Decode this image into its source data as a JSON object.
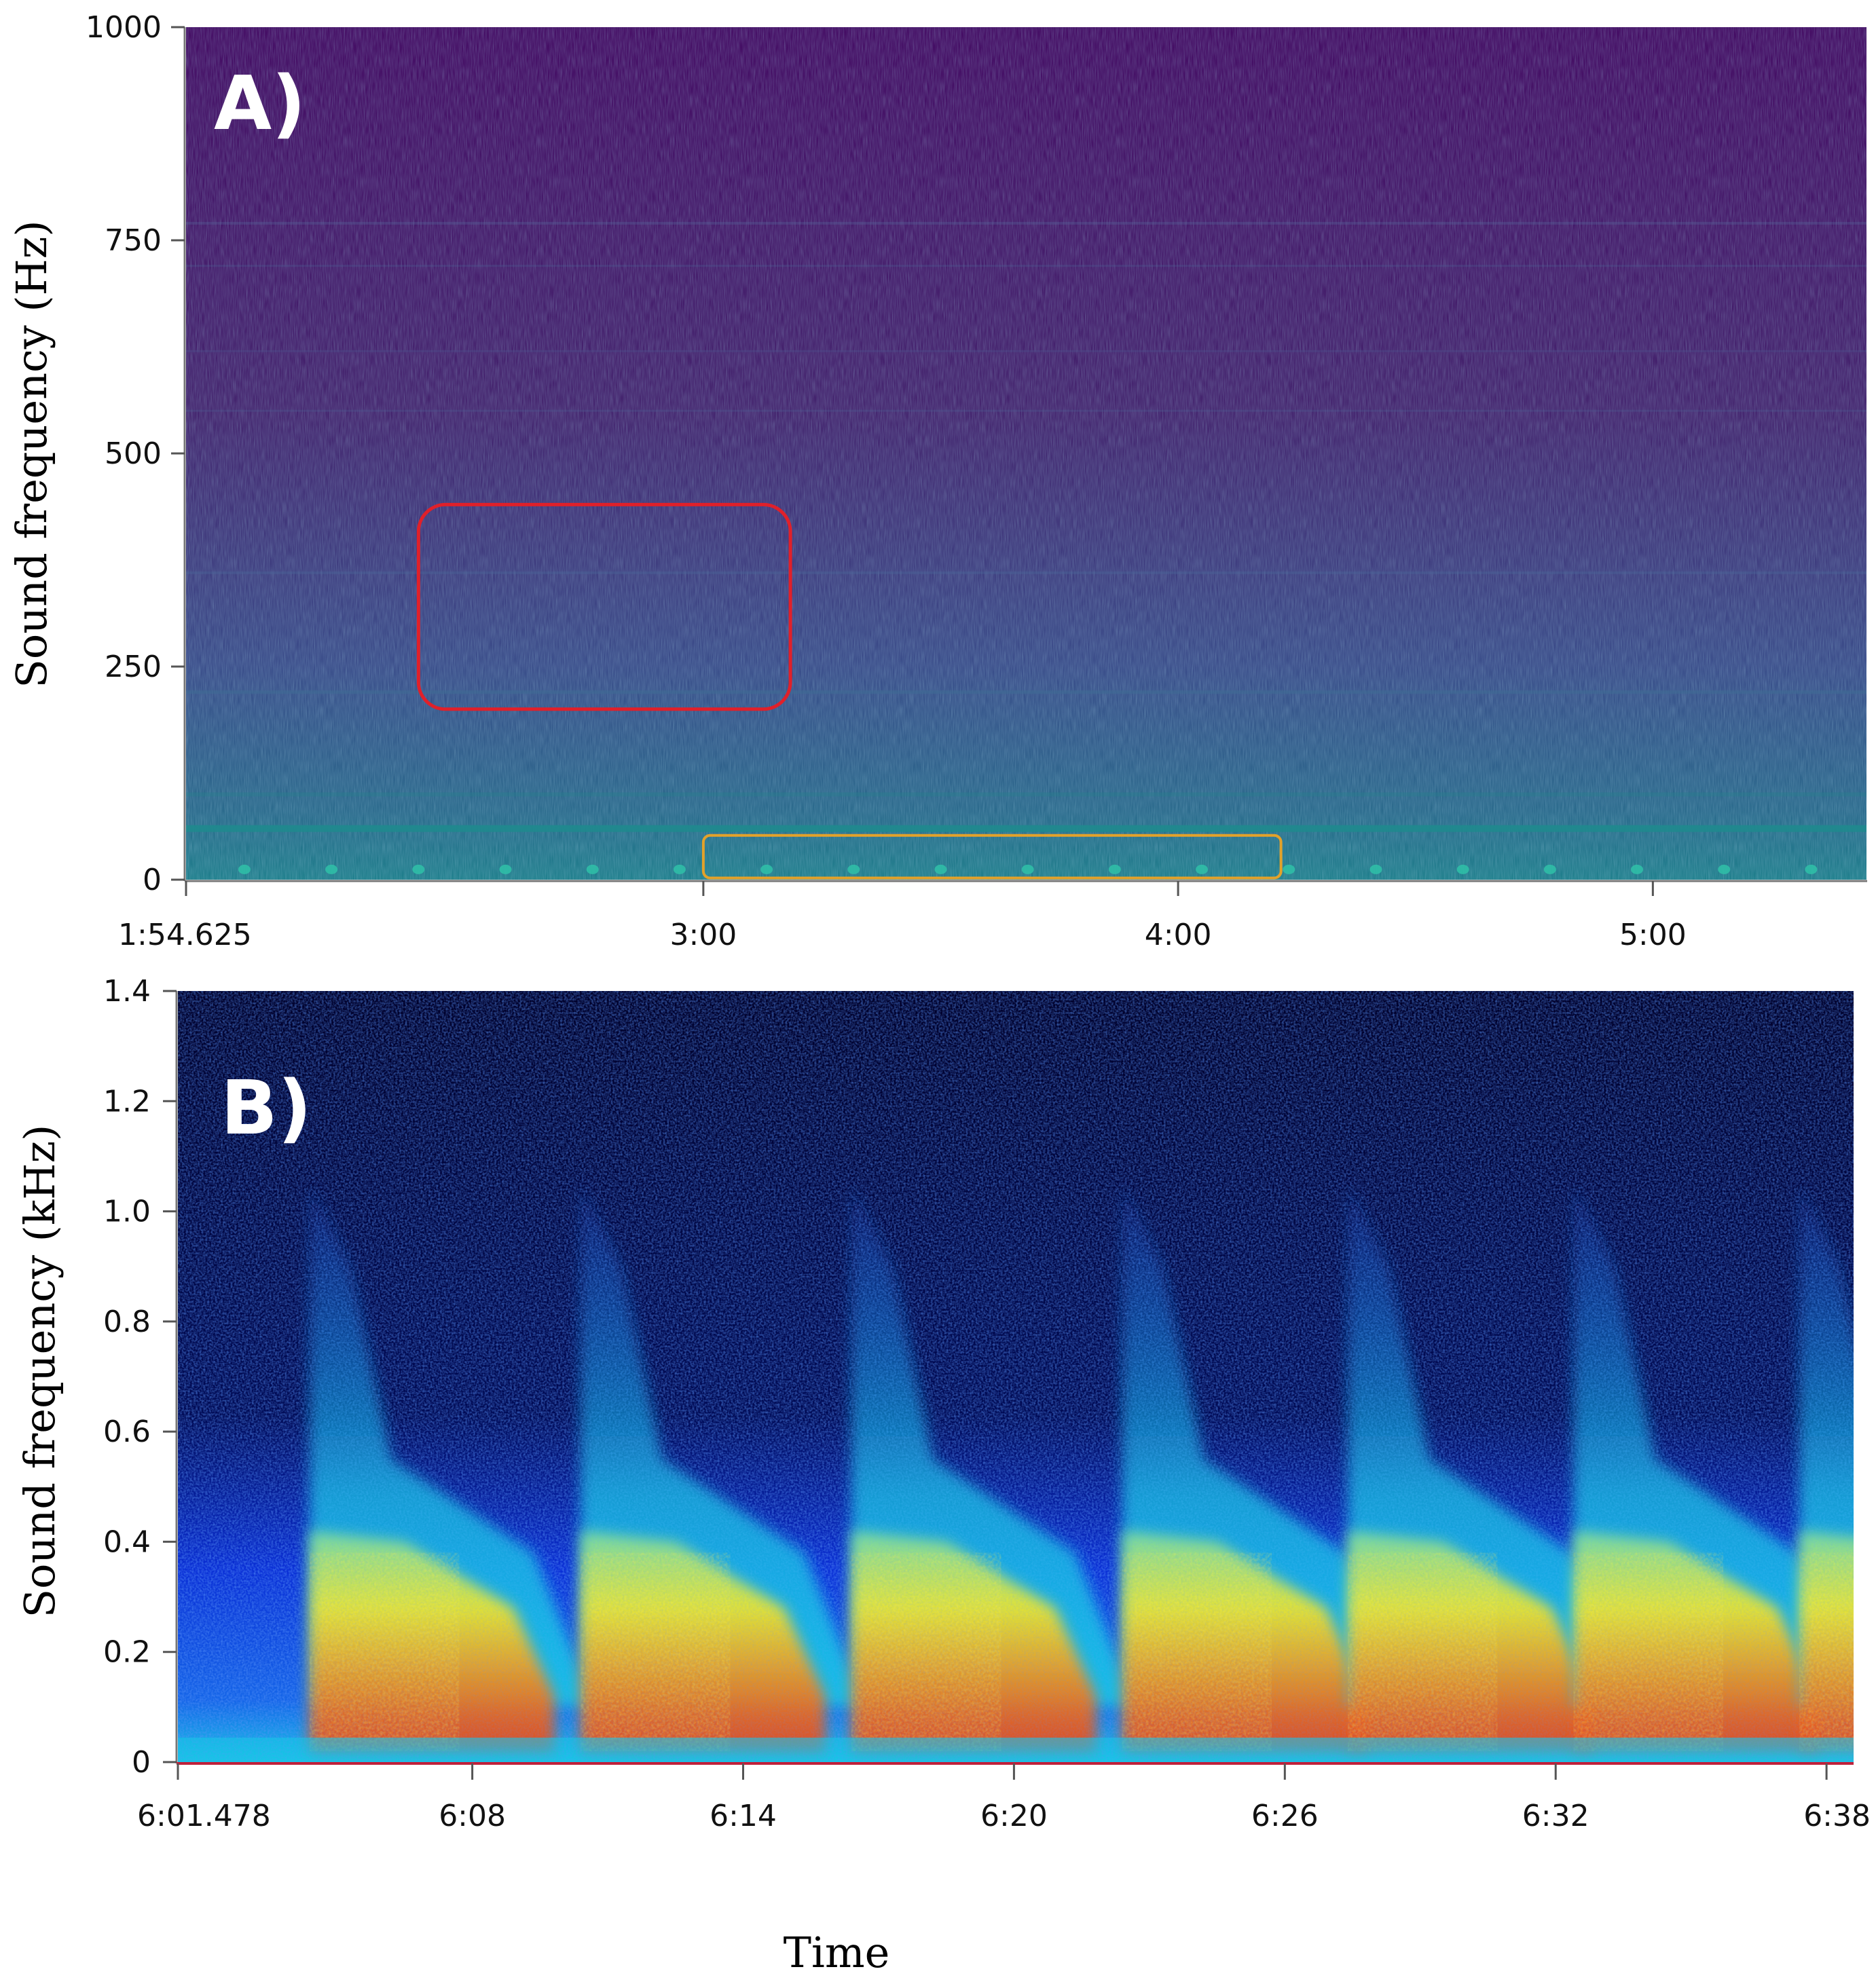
{
  "chart_data": [
    {
      "type": "heatmap",
      "panel_label": "A)",
      "ylabel": "Sound frequency (Hz)",
      "yticks": [
        "0",
        "250",
        "500",
        "750",
        "1000"
      ],
      "ylim": [
        0,
        1000
      ],
      "xticks": [
        "1:54.625",
        "3:00",
        "4:00",
        "5:00"
      ],
      "xlim_seconds": [
        114.625,
        327
      ],
      "colormap": [
        "#440b63",
        "#3a4d8a",
        "#1f7f8c"
      ],
      "annotations": [
        {
          "shape": "rounded-rect",
          "color": "#e0202a",
          "x_seconds": [
            144,
            191
          ],
          "y_hz": [
            200,
            440
          ]
        },
        {
          "shape": "rounded-rect",
          "color": "#e3a22a",
          "x_seconds": [
            180,
            253
          ],
          "y_hz": [
            2,
            52
          ]
        }
      ]
    },
    {
      "type": "heatmap",
      "panel_label": "B)",
      "ylabel": "Sound frequency (kHz)",
      "yticks": [
        "0",
        "0.2",
        "0.4",
        "0.6",
        "0.8",
        "1.0",
        "1.2",
        "1.4"
      ],
      "ylim": [
        0,
        1.4
      ],
      "xticks": [
        "6:01.478",
        "6:08",
        "6:14",
        "6:20",
        "6:26",
        "6:32",
        "6:38"
      ],
      "xlim_seconds": [
        361.478,
        398.6
      ],
      "colormap": [
        "#00002a",
        "#0a2fd6",
        "#18c6e6",
        "#f2e82a",
        "#e8431c"
      ],
      "call_onsets_seconds": [
        364.4,
        370.4,
        376.4,
        382.4,
        387.4,
        392.4,
        397.4
      ]
    }
  ],
  "xlabel": "Time"
}
